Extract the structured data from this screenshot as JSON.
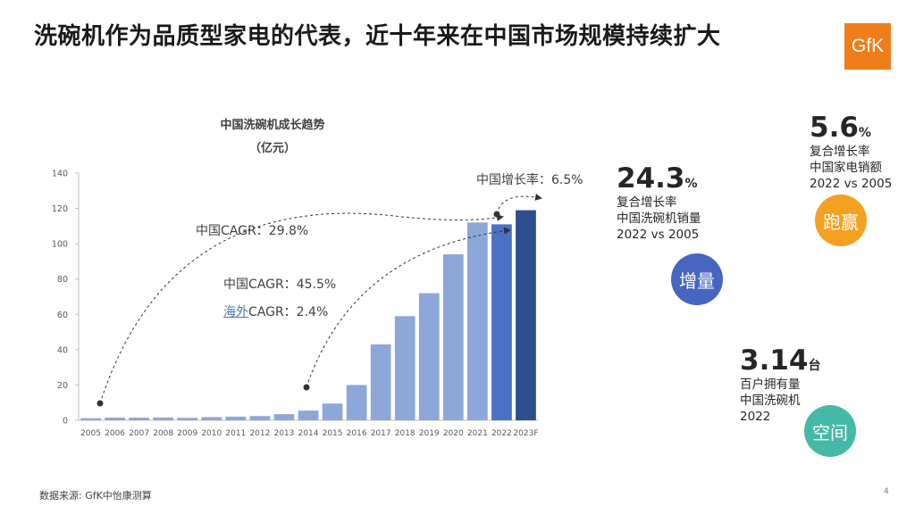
{
  "header": {
    "title": "洗碗机作为品质型家电的代表，近十年来在中国市场规模持续扩大",
    "logo_text": "GfK",
    "logo_color": "#ef7d1a"
  },
  "chart_data": {
    "type": "bar",
    "title": "中国洗碗机成长趋势",
    "subtitle": "（亿元）",
    "categories": [
      "2005",
      "2006",
      "2007",
      "2008",
      "2009",
      "2010",
      "2011",
      "2012",
      "2013",
      "2014",
      "2015",
      "2016",
      "2017",
      "2018",
      "2019",
      "2020",
      "2021",
      "2022",
      "2023F"
    ],
    "values": [
      1.2,
      1.5,
      1.5,
      1.6,
      1.4,
      1.8,
      2.1,
      2.4,
      3.5,
      5.5,
      9.5,
      20,
      43,
      59,
      72,
      94,
      112,
      111,
      119
    ],
    "ylim": [
      0,
      140
    ],
    "yticks": [
      0,
      20,
      40,
      60,
      80,
      100,
      120,
      140
    ],
    "grid": false,
    "colors": {
      "light": "#8ea7d9",
      "mid": "#4a72c4",
      "dark": "#2e4f8e"
    },
    "annotations": {
      "cagr_total": "中国CAGR：29.8%",
      "cagr_recent": "中国CAGR：45.5%",
      "overseas_prefix": "海外",
      "overseas_rest": "CAGR：2.4%",
      "growth_rate": "中国增长率：6.5%"
    }
  },
  "stats": [
    {
      "value": "24.3",
      "unit": "%",
      "lines": [
        "复合增长率",
        "中国洗碗机销量",
        "2022 vs 2005"
      ],
      "bubble": "增量",
      "color": "#4666c0"
    },
    {
      "value": "5.6",
      "unit": "%",
      "lines": [
        "复合增长率",
        "中国家电销额",
        "2022 vs 2005"
      ],
      "bubble": "跑赢",
      "color": "#f4a020"
    },
    {
      "value": "3.14",
      "unit": "台",
      "lines": [
        "百户拥有量",
        "中国洗碗机",
        "2022"
      ],
      "bubble": "空间",
      "color": "#45b8a8"
    }
  ],
  "footer": {
    "source": "数据来源: GfK中怡康测算",
    "page": "4"
  }
}
